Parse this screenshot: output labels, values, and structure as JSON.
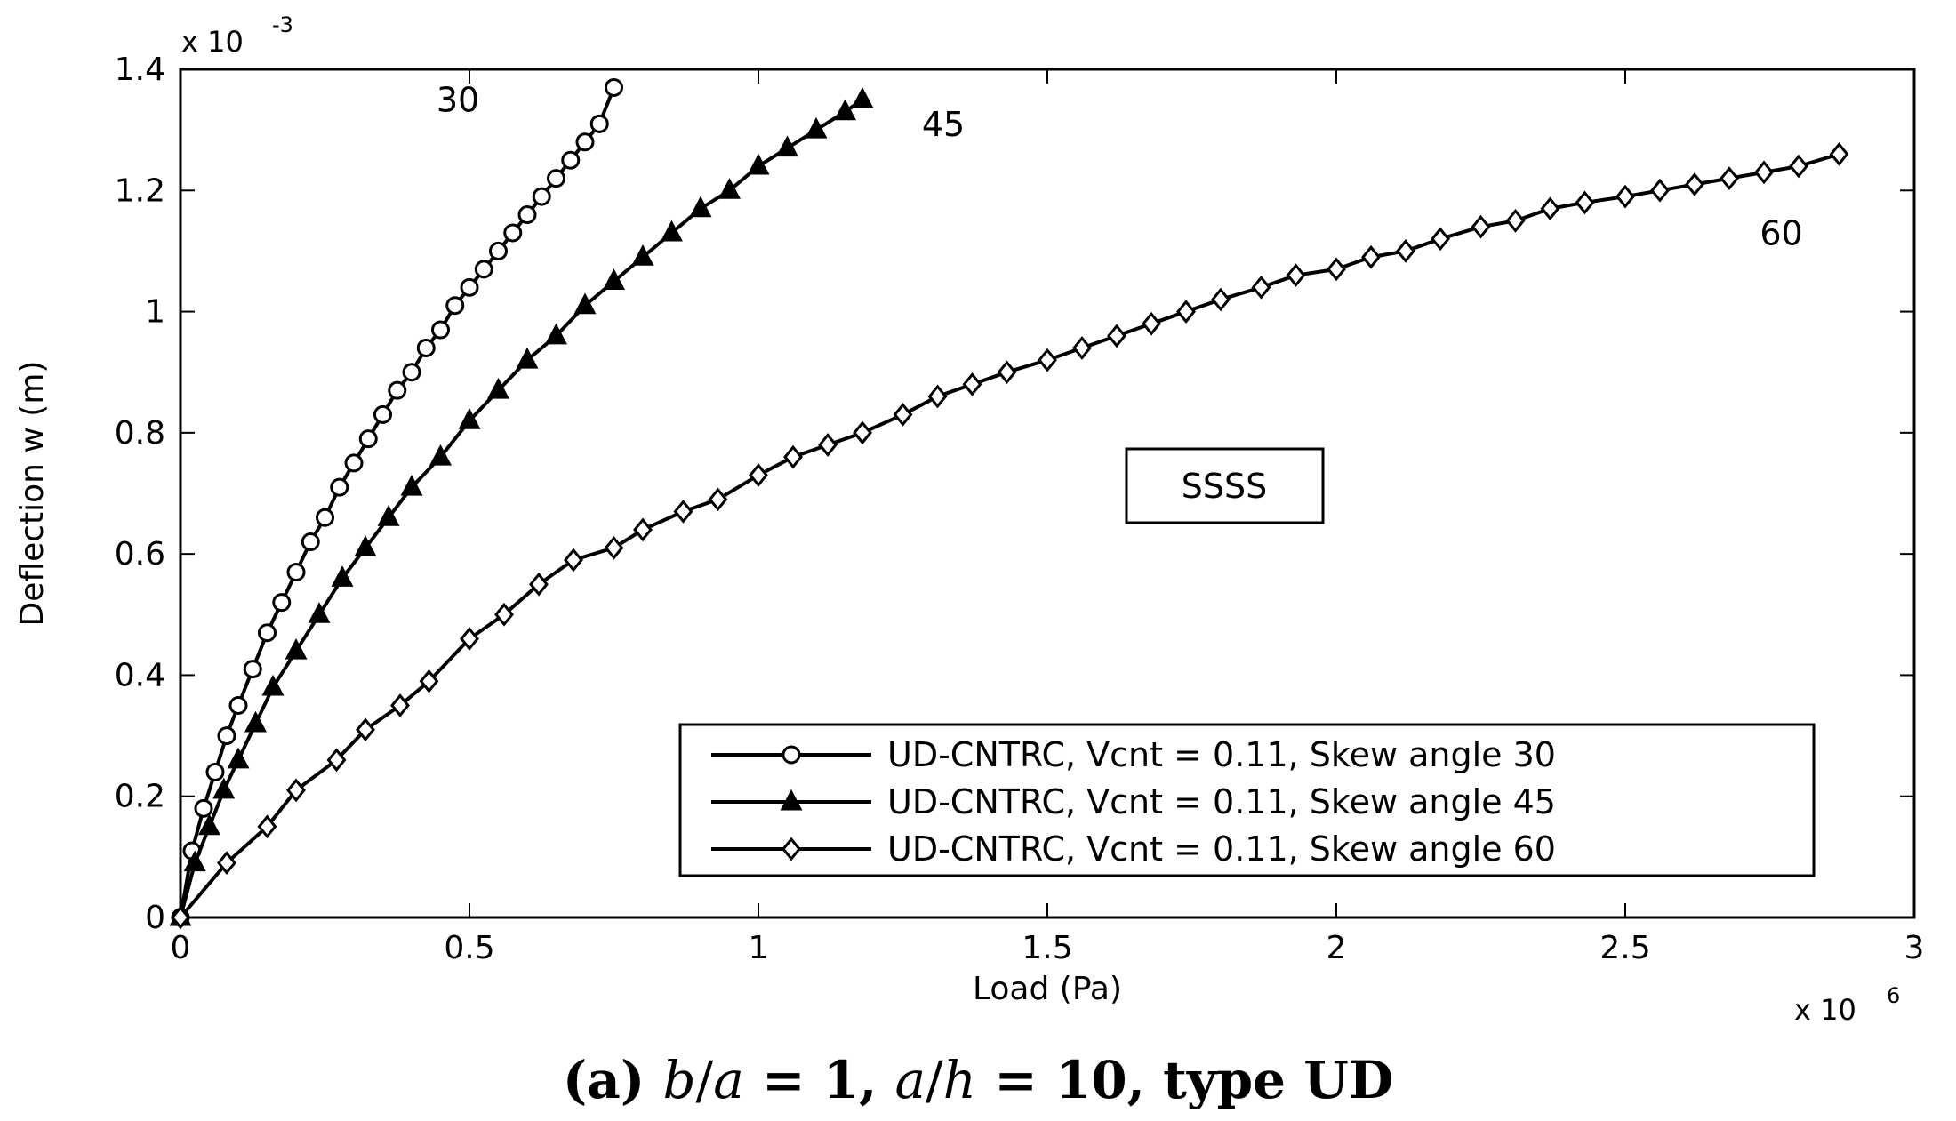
{
  "chart_data": {
    "type": "line",
    "xlabel": "Load (Pa)",
    "ylabel": "Deflection w (m)",
    "x_multiplier": "x 10",
    "x_multiplier_exp": "6",
    "y_multiplier": "x 10",
    "y_multiplier_exp": "-3",
    "xlim": [
      0,
      3
    ],
    "ylim": [
      0,
      1.4
    ],
    "x_ticks": [
      "0",
      "0.5",
      "1",
      "1.5",
      "2",
      "2.5",
      "3"
    ],
    "y_ticks": [
      "0",
      "0.2",
      "0.4",
      "0.6",
      "0.8",
      "1",
      "1.2",
      "1.4"
    ],
    "grid": false,
    "legend_position": "bottom-right",
    "series": [
      {
        "name": "UD-CNTRC, Vcnt = 0.11, Skew angle 30",
        "marker": "circle",
        "x": [
          0,
          0.02,
          0.04,
          0.06,
          0.08,
          0.1,
          0.125,
          0.15,
          0.175,
          0.2,
          0.225,
          0.25,
          0.275,
          0.3,
          0.325,
          0.35,
          0.375,
          0.4,
          0.425,
          0.45,
          0.475,
          0.5,
          0.525,
          0.55,
          0.575,
          0.6,
          0.625,
          0.65,
          0.675,
          0.7,
          0.725,
          0.75
        ],
        "y": [
          0,
          0.11,
          0.18,
          0.24,
          0.3,
          0.35,
          0.41,
          0.47,
          0.52,
          0.57,
          0.62,
          0.66,
          0.71,
          0.75,
          0.79,
          0.83,
          0.87,
          0.9,
          0.94,
          0.97,
          1.01,
          1.04,
          1.07,
          1.1,
          1.13,
          1.16,
          1.19,
          1.22,
          1.25,
          1.28,
          1.31,
          1.37
        ]
      },
      {
        "name": "UD-CNTRC, Vcnt = 0.11, Skew angle 45",
        "marker": "triangle",
        "x": [
          0,
          0.025,
          0.05,
          0.075,
          0.1,
          0.13,
          0.16,
          0.2,
          0.24,
          0.28,
          0.32,
          0.36,
          0.4,
          0.45,
          0.5,
          0.55,
          0.6,
          0.65,
          0.7,
          0.75,
          0.8,
          0.85,
          0.9,
          0.95,
          1.0,
          1.05,
          1.1,
          1.15,
          1.18
        ],
        "y": [
          0,
          0.09,
          0.15,
          0.21,
          0.26,
          0.32,
          0.38,
          0.44,
          0.5,
          0.56,
          0.61,
          0.66,
          0.71,
          0.76,
          0.82,
          0.87,
          0.92,
          0.96,
          1.01,
          1.05,
          1.09,
          1.13,
          1.17,
          1.2,
          1.24,
          1.27,
          1.3,
          1.33,
          1.35
        ]
      },
      {
        "name": "UD-CNTRC, Vcnt = 0.11, Skew angle 60",
        "marker": "diamond",
        "x": [
          0,
          0.08,
          0.15,
          0.2,
          0.27,
          0.32,
          0.38,
          0.43,
          0.5,
          0.56,
          0.62,
          0.68,
          0.75,
          0.8,
          0.87,
          0.93,
          1.0,
          1.06,
          1.12,
          1.18,
          1.25,
          1.31,
          1.37,
          1.43,
          1.5,
          1.56,
          1.62,
          1.68,
          1.74,
          1.8,
          1.87,
          1.93,
          2.0,
          2.06,
          2.12,
          2.18,
          2.25,
          2.31,
          2.37,
          2.43,
          2.5,
          2.56,
          2.62,
          2.68,
          2.74,
          2.8,
          2.87
        ],
        "y": [
          0,
          0.09,
          0.15,
          0.21,
          0.26,
          0.31,
          0.35,
          0.39,
          0.46,
          0.5,
          0.55,
          0.59,
          0.61,
          0.64,
          0.67,
          0.69,
          0.73,
          0.76,
          0.78,
          0.8,
          0.83,
          0.86,
          0.88,
          0.9,
          0.92,
          0.94,
          0.96,
          0.98,
          1.0,
          1.02,
          1.04,
          1.06,
          1.07,
          1.09,
          1.1,
          1.12,
          1.14,
          1.15,
          1.17,
          1.18,
          1.19,
          1.2,
          1.21,
          1.22,
          1.23,
          1.24,
          1.26
        ]
      }
    ],
    "annotations": [
      {
        "text": "30",
        "x": 0.48,
        "y": 1.33
      },
      {
        "text": "45",
        "x": 1.32,
        "y": 1.29
      },
      {
        "text": "60",
        "x": 2.77,
        "y": 1.11
      }
    ],
    "boundary_label": "SSSS"
  },
  "caption": {
    "prefix": "(a) ",
    "b": "b",
    "slash1": "/",
    "a1": "a",
    "eq1": " = 1, ",
    "a2": "a",
    "slash2": "/",
    "h": "h",
    "eq2": " = 10, ",
    "tail": "type UD"
  }
}
